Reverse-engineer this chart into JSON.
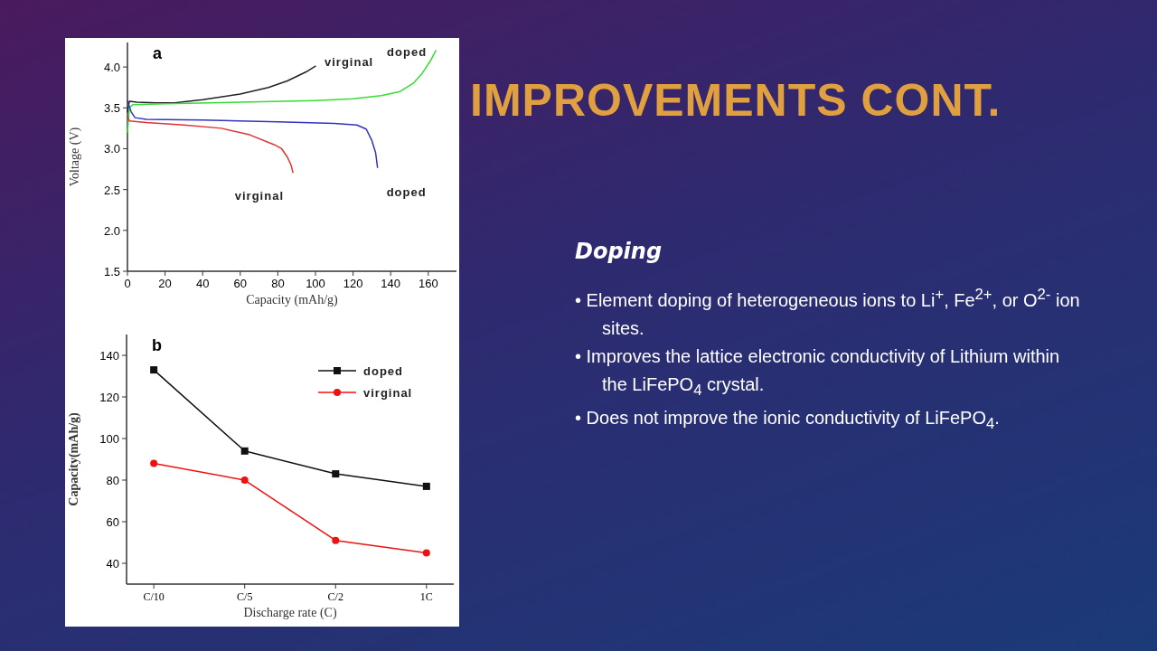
{
  "chart_data": [
    {
      "type": "line",
      "xlabel": "Capacity (mAh/g)",
      "ylabel": "Voltage (V)",
      "annotations": [
        "a"
      ],
      "xlim": [
        0,
        175
      ],
      "ylim": [
        1.5,
        4.3
      ],
      "xticks": [
        0,
        20,
        40,
        60,
        80,
        100,
        120,
        140,
        160
      ],
      "yticks": [
        1.5,
        {
          "value": 2,
          "label": "2.0"
        },
        2.5,
        {
          "value": 3,
          "label": "3.0"
        },
        3.5,
        {
          "value": 4,
          "label": "4.0"
        }
      ],
      "grid": false,
      "legend": false,
      "series": [
        {
          "name": "virginal",
          "color": "#222222",
          "x": [
            0,
            1,
            5,
            15,
            25,
            40,
            60,
            75,
            85,
            95,
            100
          ],
          "values": [
            3.45,
            3.58,
            3.57,
            3.56,
            3.56,
            3.6,
            3.67,
            3.75,
            3.83,
            3.94,
            4.01
          ]
        },
        {
          "name": "doped",
          "color": "#33dd33",
          "x": [
            0,
            1,
            3,
            20,
            60,
            100,
            120,
            135,
            145,
            152,
            157,
            161,
            164
          ],
          "values": [
            3.2,
            3.5,
            3.54,
            3.55,
            3.57,
            3.59,
            3.61,
            3.65,
            3.7,
            3.8,
            3.93,
            4.07,
            4.2
          ]
        },
        {
          "name": "doped",
          "color": "#3333bb",
          "x": [
            0,
            2,
            4,
            10,
            40,
            80,
            110,
            122,
            127,
            130,
            132,
            133
          ],
          "values": [
            3.58,
            3.45,
            3.38,
            3.36,
            3.35,
            3.33,
            3.31,
            3.29,
            3.24,
            3.1,
            2.95,
            2.77
          ]
        },
        {
          "name": "virginal",
          "color": "#dd3333",
          "x": [
            0,
            1,
            10,
            30,
            50,
            65,
            78,
            82,
            85,
            87,
            88
          ],
          "values": [
            3.4,
            3.34,
            3.32,
            3.29,
            3.25,
            3.17,
            3.05,
            3.0,
            2.9,
            2.8,
            2.71
          ]
        }
      ]
    },
    {
      "type": "line",
      "xlabel": "Discharge rate (C)",
      "ylabel": "Capacity(mAh/g)",
      "annotations": [
        "b"
      ],
      "categories": [
        "C/10",
        "C/5",
        "C/2",
        "1C"
      ],
      "ylim": [
        30,
        150
      ],
      "yticks": [
        40,
        60,
        80,
        100,
        120,
        140
      ],
      "grid": false,
      "legend": "top right",
      "series": [
        {
          "name": "doped",
          "color": "#111111",
          "marker": "square",
          "values": [
            133,
            94,
            83,
            77
          ]
        },
        {
          "name": "virginal",
          "color": "#ee1111",
          "marker": "circle",
          "values": [
            88,
            80,
            51,
            45
          ]
        }
      ]
    },
    {
      "type": "other",
      "title": "IMPROVEMENTS CONT.",
      "subtitle": "Doping",
      "annotations": [
        "• Element doping of heterogeneous ions to Li$^{+}$, Fe$^{2+}$, or O$^{2-}$ ion sites.",
        "• Improves the lattice electronic conductivity of Lithium within the LiFePO$_{4}$ crystal.",
        "• Does not improve the ionic conductivity of LiFePO$_{4}$."
      ]
    }
  ]
}
